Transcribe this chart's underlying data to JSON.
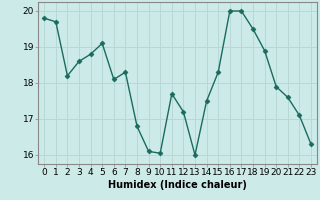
{
  "x": [
    0,
    1,
    2,
    3,
    4,
    5,
    6,
    7,
    8,
    9,
    10,
    11,
    12,
    13,
    14,
    15,
    16,
    17,
    18,
    19,
    20,
    21,
    22,
    23
  ],
  "y": [
    19.8,
    19.7,
    18.2,
    18.6,
    18.8,
    19.1,
    18.1,
    18.3,
    16.8,
    16.1,
    16.05,
    17.7,
    17.2,
    16.0,
    17.5,
    18.3,
    20.0,
    20.0,
    19.5,
    18.9,
    17.9,
    17.6,
    17.1,
    16.3
  ],
  "line_color": "#1a6b5e",
  "marker": "D",
  "markersize": 2.5,
  "linewidth": 1.0,
  "bg_color": "#cceae8",
  "grid_color": "#b8d8d6",
  "xlabel": "Humidex (Indice chaleur)",
  "ylim": [
    15.75,
    20.25
  ],
  "xlim": [
    -0.5,
    23.5
  ],
  "yticks": [
    16,
    17,
    18,
    19,
    20
  ],
  "xticks": [
    0,
    1,
    2,
    3,
    4,
    5,
    6,
    7,
    8,
    9,
    10,
    11,
    12,
    13,
    14,
    15,
    16,
    17,
    18,
    19,
    20,
    21,
    22,
    23
  ],
  "xtick_labels": [
    "0",
    "1",
    "2",
    "3",
    "4",
    "5",
    "6",
    "7",
    "8",
    "9",
    "10",
    "11",
    "12",
    "13",
    "14",
    "15",
    "16",
    "17",
    "18",
    "19",
    "20",
    "21",
    "22",
    "23"
  ],
  "xlabel_fontsize": 7,
  "tick_fontsize": 6.5,
  "spine_color": "#888888"
}
